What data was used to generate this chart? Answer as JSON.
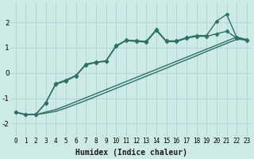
{
  "xlabel": "Humidex (Indice chaleur)",
  "background_color": "#ceeae7",
  "grid_color": "#aed4d0",
  "line_color": "#2d7068",
  "x_values": [
    0,
    1,
    2,
    3,
    4,
    5,
    6,
    7,
    8,
    9,
    10,
    11,
    12,
    13,
    14,
    15,
    16,
    17,
    18,
    19,
    20,
    21,
    22,
    23
  ],
  "line1_y": [
    -1.55,
    -1.65,
    -1.65,
    -1.2,
    -0.42,
    -0.28,
    -0.1,
    0.35,
    0.43,
    0.48,
    1.08,
    1.3,
    1.28,
    1.25,
    1.72,
    1.27,
    1.27,
    1.4,
    1.48,
    1.48,
    2.05,
    2.32,
    1.4,
    1.32
  ],
  "line2_y": [
    -1.55,
    -1.65,
    -1.65,
    -1.18,
    -0.45,
    -0.32,
    -0.12,
    0.32,
    0.41,
    0.46,
    1.05,
    1.28,
    1.25,
    1.22,
    1.68,
    1.24,
    1.24,
    1.37,
    1.45,
    1.45,
    1.55,
    1.65,
    1.38,
    1.28
  ],
  "line3_y": [
    -1.55,
    -1.65,
    -1.65,
    -1.55,
    -1.45,
    -1.3,
    -1.14,
    -0.98,
    -0.82,
    -0.66,
    -0.5,
    -0.34,
    -0.18,
    -0.02,
    0.14,
    0.3,
    0.46,
    0.62,
    0.78,
    0.94,
    1.1,
    1.26,
    1.42,
    1.32
  ],
  "line4_y": [
    -1.55,
    -1.65,
    -1.65,
    -1.59,
    -1.52,
    -1.39,
    -1.24,
    -1.09,
    -0.93,
    -0.77,
    -0.61,
    -0.45,
    -0.29,
    -0.13,
    0.03,
    0.19,
    0.36,
    0.52,
    0.68,
    0.85,
    1.01,
    1.17,
    1.33,
    1.32
  ],
  "ylim": [
    -2.5,
    2.8
  ],
  "xlim": [
    -0.5,
    23.5
  ],
  "yticks": [
    -2,
    -1,
    0,
    1,
    2
  ],
  "xticks": [
    0,
    1,
    2,
    3,
    4,
    5,
    6,
    7,
    8,
    9,
    10,
    11,
    12,
    13,
    14,
    15,
    16,
    17,
    18,
    19,
    20,
    21,
    22,
    23
  ],
  "marker": "D",
  "marker_size": 2.5,
  "line_width": 1.0,
  "tick_fontsize": 5.5,
  "xlabel_fontsize": 7
}
